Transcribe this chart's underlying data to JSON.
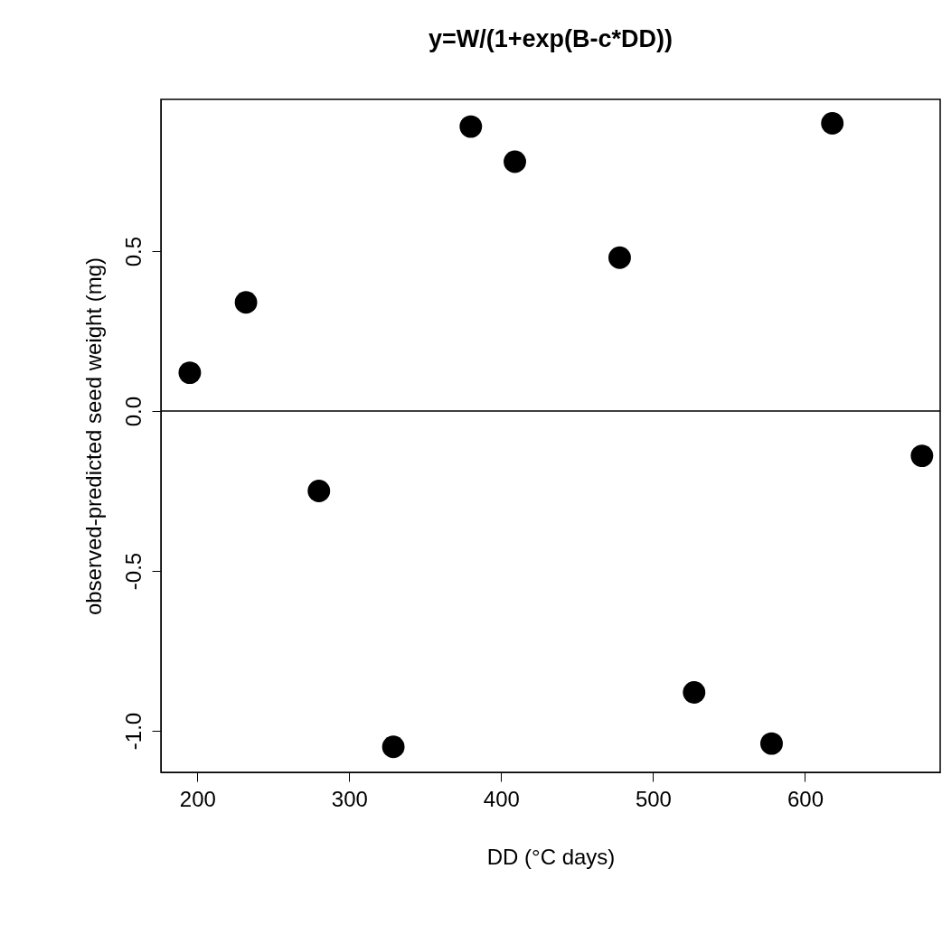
{
  "chart_data": {
    "type": "scatter",
    "title": "y=W/(1+exp(B-c*DD))",
    "xlabel": "DD (°C days)",
    "ylabel": "observed-predicted seed weight (mg)",
    "x": [
      195,
      232,
      280,
      329,
      380,
      409,
      478,
      527,
      578,
      618,
      677
    ],
    "series": [
      {
        "color": "#000000",
        "values": [
          0.12,
          0.34,
          -0.25,
          -1.05,
          0.89,
          0.78,
          0.48,
          -0.88,
          -1.04,
          0.9,
          -0.14
        ]
      }
    ],
    "xlim": [
      176,
      689
    ],
    "xticks": [
      200,
      300,
      400,
      500,
      600
    ],
    "ylim": [
      -1.13,
      0.975
    ],
    "yticks": [
      {
        "value": -1,
        "label": "-1.0"
      },
      -0.5,
      {
        "value": 0,
        "label": "0.0"
      },
      0.5
    ],
    "ref_lines": [
      {
        "axis": "y",
        "value": 0,
        "color": "#000000"
      }
    ],
    "marker": "circle",
    "grid": false,
    "legend": false
  }
}
